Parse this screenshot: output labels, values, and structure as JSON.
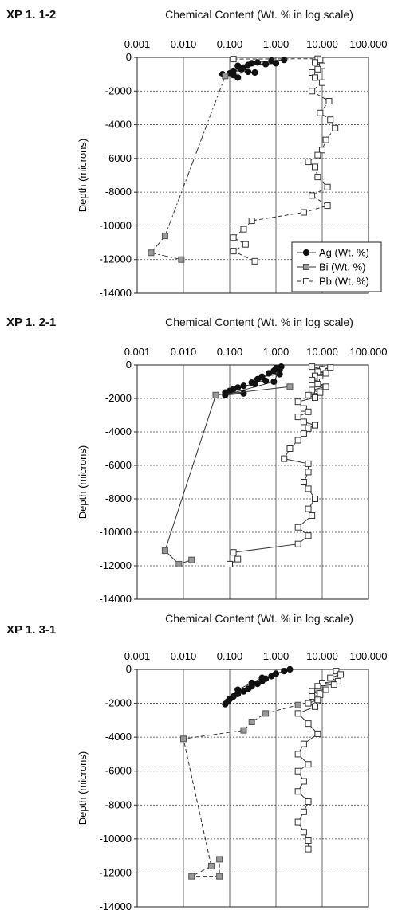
{
  "chart_data": [
    {
      "type": "scatter",
      "panel_label": "XP 1. 1-2",
      "title": "Chemical Content (Wt. % in log scale)",
      "xlabel": "Chemical Content (Wt. % in log scale)",
      "ylabel": "Depth (microns)",
      "xscale": "log",
      "xlim": [
        0.001,
        100
      ],
      "ylim": [
        -14000,
        0
      ],
      "x_tick_labels": [
        "0.001",
        "0.010",
        "0.100",
        "1.000",
        "10.000",
        "100.000"
      ],
      "y_ticks": [
        0,
        -2000,
        -4000,
        -6000,
        -8000,
        -10000,
        -12000,
        -14000
      ],
      "y_tick_labels": [
        "0",
        "-2000",
        "-4000",
        "-6000",
        "-8000",
        "-10000",
        "-12000",
        "-14000"
      ],
      "grid": "dotted horizontal, solid vertical",
      "legend": "bottom-right",
      "series": [
        {
          "name": "Ag (Wt. %)",
          "marker": "filled-circle",
          "line": "solid",
          "points": [
            [
              1.5,
              -150
            ],
            [
              0.8,
              -200
            ],
            [
              0.4,
              -300
            ],
            [
              0.3,
              -350
            ],
            [
              0.6,
              -400
            ],
            [
              1.0,
              -350
            ],
            [
              0.25,
              -450
            ],
            [
              0.15,
              -500
            ],
            [
              0.2,
              -600
            ],
            [
              0.18,
              -700
            ],
            [
              0.12,
              -800
            ],
            [
              0.25,
              -850
            ],
            [
              0.35,
              -900
            ],
            [
              0.1,
              -950
            ],
            [
              0.07,
              -1000
            ],
            [
              0.08,
              -1100
            ],
            [
              0.15,
              -1200
            ],
            [
              0.12,
              -1050
            ]
          ]
        },
        {
          "name": "Bi (Wt. %)",
          "marker": "grey-square",
          "line": "dash-dot",
          "points": [
            [
              0.08,
              -1100
            ],
            [
              0.004,
              -10600
            ],
            [
              0.002,
              -11600
            ],
            [
              0.009,
              -12000
            ]
          ]
        },
        {
          "name": "Pb (Wt. %)",
          "marker": "open-square",
          "line": "dashed",
          "points": [
            [
              0.12,
              -100
            ],
            [
              8,
              -80
            ],
            [
              9,
              -150
            ],
            [
              7,
              -300
            ],
            [
              10,
              -500
            ],
            [
              8,
              -700
            ],
            [
              6,
              -900
            ],
            [
              7,
              -1200
            ],
            [
              10,
              -1500
            ],
            [
              6,
              -2000
            ],
            [
              14,
              -2600
            ],
            [
              9,
              -3300
            ],
            [
              15,
              -3700
            ],
            [
              19,
              -4200
            ],
            [
              12,
              -4900
            ],
            [
              10,
              -5500
            ],
            [
              8,
              -5800
            ],
            [
              5,
              -6200
            ],
            [
              7,
              -6500
            ],
            [
              8,
              -7100
            ],
            [
              13,
              -7700
            ],
            [
              6,
              -8200
            ],
            [
              13,
              -8800
            ],
            [
              4,
              -9200
            ],
            [
              0.3,
              -9700
            ],
            [
              0.2,
              -10200
            ],
            [
              0.12,
              -10700
            ],
            [
              0.22,
              -11100
            ],
            [
              0.12,
              -11500
            ],
            [
              0.35,
              -12100
            ]
          ]
        }
      ]
    },
    {
      "type": "scatter",
      "panel_label": "XP 1. 2-1",
      "title": "Chemical Content (Wt. % in log scale)",
      "xlabel": "Chemical Content (Wt. % in log scale)",
      "ylabel": "Depth (microns)",
      "xscale": "log",
      "xlim": [
        0.001,
        100
      ],
      "ylim": [
        -14000,
        0
      ],
      "x_tick_labels": [
        "0.001",
        "0.010",
        "0.100",
        "1.000",
        "10.000",
        "100.000"
      ],
      "y_ticks": [
        0,
        -2000,
        -4000,
        -6000,
        -8000,
        -10000,
        -12000,
        -14000
      ],
      "y_tick_labels": [
        "0",
        "-2000",
        "-4000",
        "-6000",
        "-8000",
        "-10000",
        "-12000",
        "-14000"
      ],
      "grid": "dotted horizontal, solid vertical",
      "series": [
        {
          "name": "Ag (Wt. %)",
          "marker": "filled-circle",
          "line": "solid",
          "points": [
            [
              1.3,
              -100
            ],
            [
              1.0,
              -200
            ],
            [
              0.9,
              -350
            ],
            [
              0.7,
              -500
            ],
            [
              1.2,
              -550
            ],
            [
              0.5,
              -700
            ],
            [
              0.4,
              -850
            ],
            [
              0.6,
              -950
            ],
            [
              0.3,
              -1050
            ],
            [
              0.35,
              -1150
            ],
            [
              0.2,
              -1250
            ],
            [
              0.15,
              -1350
            ],
            [
              0.12,
              -1450
            ],
            [
              0.1,
              -1550
            ],
            [
              0.08,
              -1650
            ],
            [
              0.2,
              -1700
            ],
            [
              0.08,
              -1800
            ],
            [
              0.9,
              -1000
            ],
            [
              1.2,
              -300
            ]
          ]
        },
        {
          "name": "Bi (Wt. %)",
          "marker": "grey-square",
          "line": "solid",
          "points": [
            [
              2,
              -1300
            ],
            [
              0.05,
              -1800
            ],
            [
              0.004,
              -11100
            ],
            [
              0.008,
              -11900
            ],
            [
              0.015,
              -11650
            ]
          ]
        },
        {
          "name": "Pb (Wt. %)",
          "marker": "open-square",
          "line": "solid",
          "points": [
            [
              6,
              -100
            ],
            [
              10,
              -250
            ],
            [
              15,
              -150
            ],
            [
              8,
              -400
            ],
            [
              12,
              -500
            ],
            [
              7,
              -650
            ],
            [
              9,
              -800
            ],
            [
              6,
              -900
            ],
            [
              10,
              -1000
            ],
            [
              8,
              -1150
            ],
            [
              12,
              -1300
            ],
            [
              6,
              -1500
            ],
            [
              9,
              -1650
            ],
            [
              5,
              -1800
            ],
            [
              7,
              -1950
            ],
            [
              3,
              -2200
            ],
            [
              4,
              -2600
            ],
            [
              5,
              -2800
            ],
            [
              3,
              -3100
            ],
            [
              4,
              -3400
            ],
            [
              7,
              -3600
            ],
            [
              5,
              -3800
            ],
            [
              4,
              -4100
            ],
            [
              3,
              -4500
            ],
            [
              2,
              -5000
            ],
            [
              1.5,
              -5600
            ],
            [
              5,
              -5900
            ],
            [
              5,
              -6400
            ],
            [
              4,
              -7000
            ],
            [
              5,
              -7400
            ],
            [
              7,
              -8000
            ],
            [
              5,
              -8600
            ],
            [
              6,
              -9000
            ],
            [
              3,
              -9700
            ],
            [
              5,
              -10200
            ],
            [
              3,
              -10700
            ],
            [
              0.12,
              -11200
            ],
            [
              0.15,
              -11600
            ],
            [
              0.1,
              -11900
            ]
          ]
        }
      ]
    },
    {
      "type": "scatter",
      "panel_label": "XP 1. 3-1",
      "title": "Chemical Content (Wt. % in log scale)",
      "xlabel": "Chemical Content (Wt. % in log scale)",
      "ylabel": "Depth (microns)",
      "xscale": "log",
      "xlim": [
        0.001,
        100
      ],
      "ylim": [
        -14000,
        0
      ],
      "x_tick_labels": [
        "0.001",
        "0.010",
        "0.100",
        "1.000",
        "10.000",
        "100.000"
      ],
      "y_ticks": [
        0,
        -2000,
        -4000,
        -6000,
        -8000,
        -10000,
        -12000,
        -14000
      ],
      "y_tick_labels": [
        "0",
        "-2000",
        "-4000",
        "-6000",
        "-8000",
        "-10000",
        "-12000",
        "-14000"
      ],
      "grid": "dotted horizontal, solid vertical",
      "series": [
        {
          "name": "Ag (Wt. %)",
          "marker": "filled-circle",
          "line": "solid",
          "points": [
            [
              2,
              0
            ],
            [
              1.5,
              -100
            ],
            [
              1.0,
              -250
            ],
            [
              0.8,
              -400
            ],
            [
              0.6,
              -550
            ],
            [
              0.5,
              -700
            ],
            [
              0.4,
              -850
            ],
            [
              0.3,
              -1000
            ],
            [
              0.25,
              -1150
            ],
            [
              0.2,
              -1300
            ],
            [
              0.15,
              -1450
            ],
            [
              0.12,
              -1600
            ],
            [
              0.1,
              -1750
            ],
            [
              0.09,
              -1900
            ],
            [
              0.08,
              -2050
            ],
            [
              0.15,
              -1200
            ],
            [
              0.3,
              -800
            ],
            [
              0.5,
              -500
            ]
          ]
        },
        {
          "name": "Bi (Wt. %)",
          "marker": "grey-square",
          "line": "dashed",
          "points": [
            [
              8,
              -1800
            ],
            [
              3,
              -2100
            ],
            [
              0.6,
              -2600
            ],
            [
              0.3,
              -3100
            ],
            [
              0.2,
              -3600
            ],
            [
              0.01,
              -4100
            ],
            [
              0.04,
              -11600
            ],
            [
              0.015,
              -12200
            ],
            [
              0.06,
              -12200
            ],
            [
              0.06,
              -11200
            ]
          ]
        },
        {
          "name": "Pb (Wt. %)",
          "marker": "open-square",
          "line": "solid",
          "points": [
            [
              20,
              -100
            ],
            [
              25,
              -300
            ],
            [
              15,
              -500
            ],
            [
              22,
              -700
            ],
            [
              10,
              -800
            ],
            [
              18,
              -900
            ],
            [
              8,
              -1000
            ],
            [
              12,
              -1200
            ],
            [
              6,
              -1300
            ],
            [
              9,
              -1500
            ],
            [
              6,
              -1600
            ],
            [
              8,
              -1800
            ],
            [
              5,
              -2000
            ],
            [
              7,
              -2200
            ],
            [
              3,
              -2600
            ],
            [
              5,
              -3200
            ],
            [
              8,
              -3800
            ],
            [
              4,
              -4400
            ],
            [
              3,
              -5000
            ],
            [
              5,
              -5600
            ],
            [
              3,
              -6000
            ],
            [
              4,
              -6600
            ],
            [
              3,
              -7200
            ],
            [
              5,
              -7800
            ],
            [
              4,
              -8400
            ],
            [
              3,
              -9000
            ],
            [
              4,
              -9600
            ],
            [
              5,
              -10100
            ],
            [
              5,
              -10600
            ]
          ]
        }
      ]
    }
  ],
  "legend": {
    "ag": "Ag (Wt. %)",
    "bi": "Bi (Wt. %)",
    "pb": "Pb (Wt. %)"
  }
}
